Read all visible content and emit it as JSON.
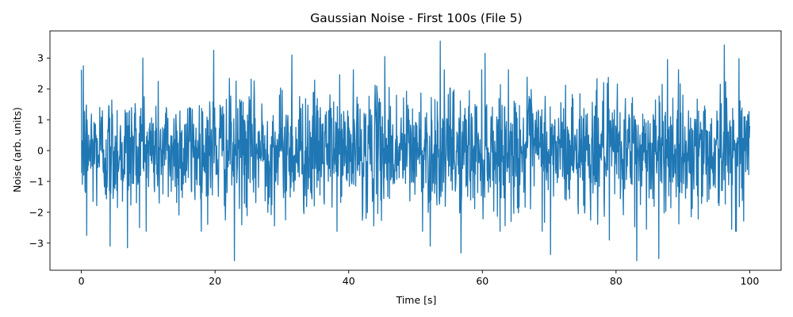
{
  "chart_data": {
    "type": "line",
    "title": "Gaussian Noise - First 100s (File 5)",
    "xlabel": "Time [s]",
    "ylabel": "Noise (arb. units)",
    "xlim": [
      -4.7,
      104.7
    ],
    "ylim": [
      -3.88,
      3.88
    ],
    "xticks": [
      0,
      20,
      40,
      60,
      80,
      100
    ],
    "yticks": [
      -3,
      -2,
      -1,
      0,
      1,
      2,
      3
    ],
    "grid": false,
    "series": [
      {
        "color": "#1f77b4",
        "sample_rate_hz": 20,
        "duration_s": 100,
        "distribution": "gaussian",
        "mean": 0,
        "std": 1,
        "observed_min": -3.57,
        "observed_max": 3.55,
        "peaks": [
          {
            "x": 0.3,
            "y": 2.75
          },
          {
            "x": 0.8,
            "y": -2.75
          },
          {
            "x": 4.3,
            "y": -3.1
          },
          {
            "x": 6.9,
            "y": -3.15
          },
          {
            "x": 9.2,
            "y": 3.0
          },
          {
            "x": 19.8,
            "y": 3.25
          },
          {
            "x": 22.9,
            "y": -3.57
          },
          {
            "x": 31.5,
            "y": 3.1
          },
          {
            "x": 45.4,
            "y": 3.05
          },
          {
            "x": 52.2,
            "y": -3.1
          },
          {
            "x": 53.7,
            "y": 3.55
          },
          {
            "x": 56.8,
            "y": -3.32
          },
          {
            "x": 60.4,
            "y": 3.15
          },
          {
            "x": 70.2,
            "y": -3.37
          },
          {
            "x": 79.0,
            "y": -2.9
          },
          {
            "x": 83.1,
            "y": -3.57
          },
          {
            "x": 86.4,
            "y": -3.5
          },
          {
            "x": 87.7,
            "y": 2.95
          },
          {
            "x": 96.2,
            "y": 3.42
          },
          {
            "x": 98.4,
            "y": 2.98
          }
        ]
      }
    ]
  }
}
